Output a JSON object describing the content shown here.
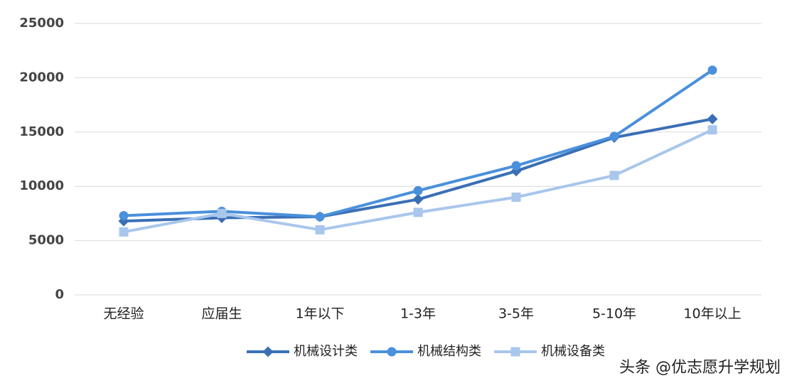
{
  "chart_data": {
    "type": "line",
    "categories": [
      "无经验",
      "应届生",
      "1年以下",
      "1-3年",
      "3-5年",
      "5-10年",
      "10年以上"
    ],
    "series": [
      {
        "name": "机械设计类",
        "color": "#3a6fb5",
        "marker": "diamond",
        "values": [
          6800,
          7100,
          7200,
          8800,
          11400,
          14500,
          16200
        ]
      },
      {
        "name": "机械结构类",
        "color": "#4a90dc",
        "marker": "circle",
        "values": [
          7300,
          7700,
          7200,
          9600,
          11900,
          14600,
          20700
        ]
      },
      {
        "name": "机械设备类",
        "color": "#a9c6ec",
        "marker": "square",
        "values": [
          5800,
          7500,
          6000,
          7600,
          9000,
          11000,
          15200
        ]
      }
    ],
    "ylim": [
      0,
      25000
    ],
    "yticks": [
      0,
      5000,
      10000,
      15000,
      20000,
      25000
    ],
    "grid": true,
    "legend": "bottom",
    "watermark": "头条 @优志愿升学规划"
  }
}
